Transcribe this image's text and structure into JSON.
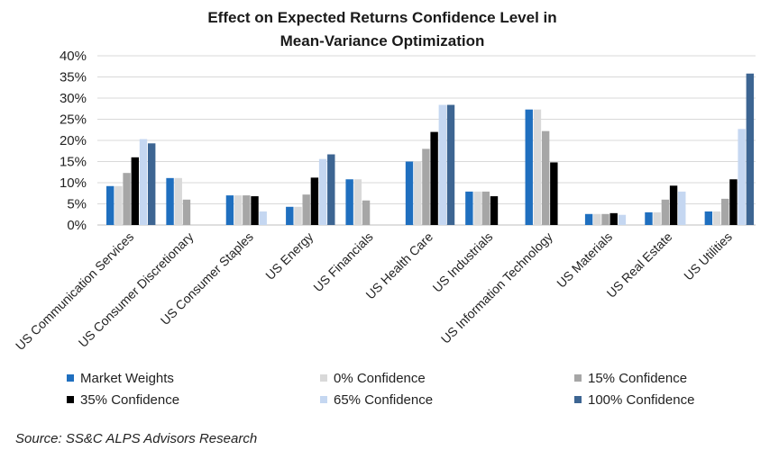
{
  "chart_data": {
    "type": "bar",
    "title_lines": [
      "Effect on Expected Returns Confidence Level in",
      "Mean-Variance  Optimization"
    ],
    "xlabel": "",
    "ylabel": "",
    "ylim": [
      0,
      40
    ],
    "yticks": [
      "0%",
      "5%",
      "10%",
      "15%",
      "20%",
      "25%",
      "30%",
      "35%",
      "40%"
    ],
    "ytick_values": [
      0,
      5,
      10,
      15,
      20,
      25,
      30,
      35,
      40
    ],
    "grid": true,
    "legend_position": "bottom",
    "categories": [
      "US Communication Services",
      "US Consumer Discretionary",
      "US Consumer Staples",
      "US Energy",
      "US Financials",
      "US Health Care",
      "US Industrials",
      "US Information Technology",
      "US Materials",
      "US Real Estate",
      "US Utilities"
    ],
    "series": [
      {
        "name": "Market Weights",
        "color": "#1f6fbf",
        "values": [
          9.2,
          11.1,
          7.0,
          4.3,
          10.8,
          15.0,
          7.9,
          27.3,
          2.6,
          3.0,
          3.2
        ]
      },
      {
        "name": "0% Confidence",
        "color": "#d9d9d9",
        "values": [
          9.2,
          11.1,
          7.0,
          4.3,
          10.8,
          15.0,
          7.9,
          27.3,
          2.6,
          3.0,
          3.2
        ]
      },
      {
        "name": "15% Confidence",
        "color": "#a6a6a6",
        "values": [
          12.3,
          6.0,
          7.0,
          7.2,
          5.8,
          18.0,
          7.9,
          22.2,
          2.6,
          6.0,
          6.2
        ]
      },
      {
        "name": "35% Confidence",
        "color": "#000000",
        "values": [
          16.0,
          0,
          6.8,
          11.2,
          0,
          22.0,
          6.8,
          14.8,
          2.8,
          9.3,
          10.8
        ]
      },
      {
        "name": "65% Confidence",
        "color": "#c5d7f1",
        "values": [
          20.3,
          0,
          3.2,
          15.6,
          0,
          28.4,
          0,
          0,
          2.4,
          7.9,
          22.7
        ]
      },
      {
        "name": "100% Confidence",
        "color": "#3d6592",
        "values": [
          19.3,
          0,
          0,
          16.7,
          0,
          28.4,
          0,
          0,
          0,
          0,
          35.8
        ]
      }
    ]
  },
  "source_note": "Source: SS&C ALPS Advisors Research"
}
